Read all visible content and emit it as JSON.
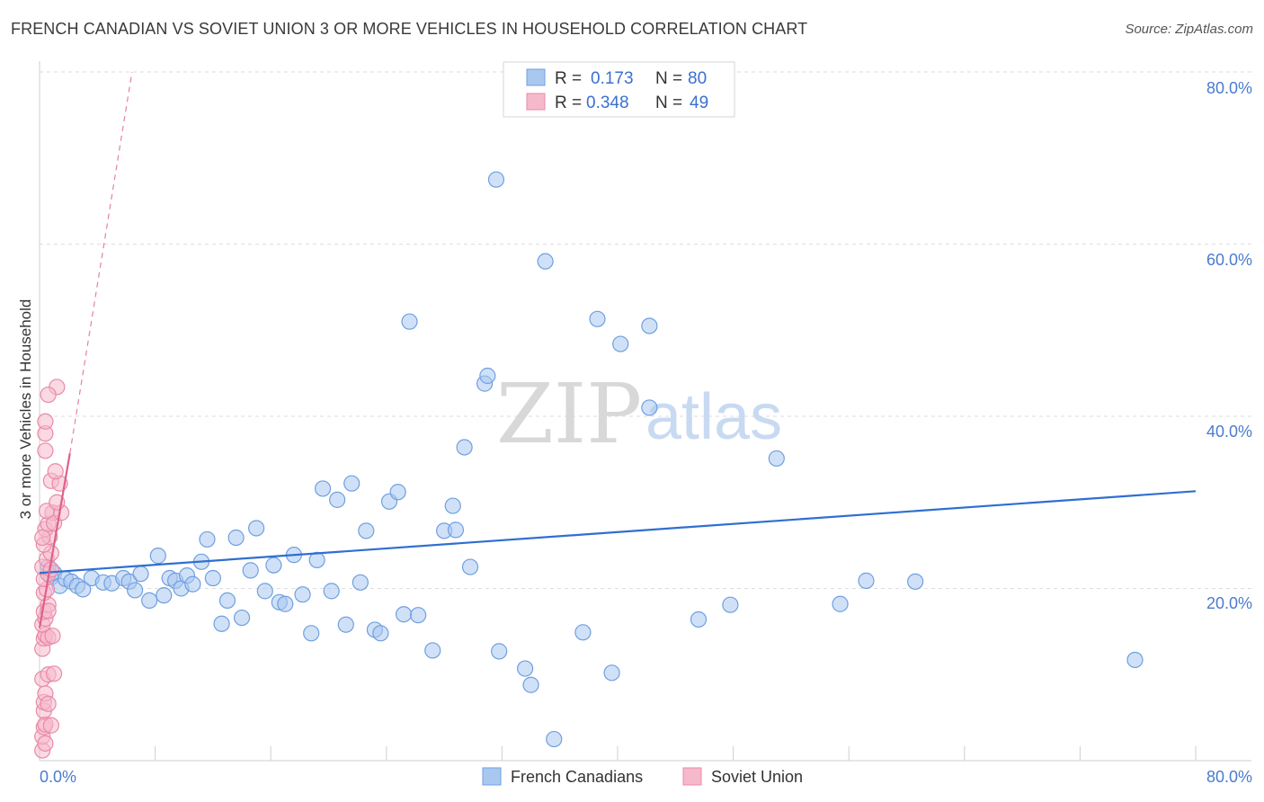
{
  "header": {
    "title": "FRENCH CANADIAN VS SOVIET UNION 3 OR MORE VEHICLES IN HOUSEHOLD CORRELATION CHART",
    "source": "Source: ZipAtlas.com"
  },
  "watermark": {
    "zip": "ZIP",
    "atlas": "atlas"
  },
  "legend": {
    "rows": [
      {
        "r_label": "R =",
        "r_value": "0.173",
        "n_label": "N =",
        "n_value": "80"
      },
      {
        "r_label": "R =",
        "r_value": "0.348",
        "n_label": "N =",
        "n_value": "49"
      }
    ]
  },
  "bottom_legend": {
    "french": "French Canadians",
    "soviet": "Soviet Union"
  },
  "axis_labels": {
    "y_title": "3 or more Vehicles in Household",
    "x_min": "0.0%",
    "x_max": "80.0%",
    "y_ticks": [
      "80.0%",
      "60.0%",
      "40.0%",
      "20.0%"
    ]
  },
  "chart_data": {
    "type": "scatter",
    "title": "FRENCH CANADIAN VS SOVIET UNION 3 OR MORE VEHICLES IN HOUSEHOLD CORRELATION CHART",
    "xlabel": "",
    "ylabel": "3 or more Vehicles in Household",
    "xlim": [
      0,
      80
    ],
    "ylim": [
      0,
      80
    ],
    "grid": true,
    "legend_position": "top-center",
    "colors": {
      "french": "#a9c8f0",
      "french_stroke": "#6f9fe0",
      "french_line": "#2f6fd0",
      "soviet": "#f6b9cc",
      "soviet_stroke": "#e98aa8",
      "soviet_line": "#e0608a",
      "axis_text": "#4a7bd0"
    },
    "series": [
      {
        "name": "French Canadians",
        "r": 0.173,
        "n": 80,
        "trend": {
          "x": [
            0,
            80
          ],
          "y": [
            21.8,
            31.3
          ]
        },
        "points": [
          [
            0.6,
            22.5
          ],
          [
            0.8,
            21.3
          ],
          [
            1.0,
            21.8
          ],
          [
            1.4,
            20.3
          ],
          [
            1.8,
            21.1
          ],
          [
            2.2,
            20.8
          ],
          [
            2.6,
            20.3
          ],
          [
            3.0,
            19.9
          ],
          [
            3.6,
            21.2
          ],
          [
            4.4,
            20.7
          ],
          [
            5.0,
            20.6
          ],
          [
            5.8,
            21.2
          ],
          [
            6.2,
            20.8
          ],
          [
            6.6,
            19.8
          ],
          [
            7.0,
            21.7
          ],
          [
            7.6,
            18.6
          ],
          [
            8.2,
            23.8
          ],
          [
            8.6,
            19.2
          ],
          [
            9.0,
            21.2
          ],
          [
            9.4,
            20.9
          ],
          [
            9.8,
            20.0
          ],
          [
            10.2,
            21.5
          ],
          [
            10.6,
            20.5
          ],
          [
            11.2,
            23.1
          ],
          [
            11.6,
            25.7
          ],
          [
            12.0,
            21.2
          ],
          [
            12.6,
            15.9
          ],
          [
            13.0,
            18.6
          ],
          [
            13.6,
            25.9
          ],
          [
            14.0,
            16.6
          ],
          [
            14.6,
            22.1
          ],
          [
            15.0,
            27.0
          ],
          [
            15.6,
            19.7
          ],
          [
            16.2,
            22.7
          ],
          [
            16.6,
            18.4
          ],
          [
            17.0,
            18.2
          ],
          [
            17.6,
            23.9
          ],
          [
            18.2,
            19.3
          ],
          [
            18.8,
            14.8
          ],
          [
            19.2,
            23.3
          ],
          [
            19.6,
            31.6
          ],
          [
            20.2,
            19.7
          ],
          [
            20.6,
            30.3
          ],
          [
            21.2,
            15.8
          ],
          [
            21.6,
            32.2
          ],
          [
            22.2,
            20.7
          ],
          [
            22.6,
            26.7
          ],
          [
            23.2,
            15.2
          ],
          [
            23.6,
            14.8
          ],
          [
            24.2,
            30.1
          ],
          [
            24.8,
            31.2
          ],
          [
            25.2,
            17.0
          ],
          [
            25.6,
            51.0
          ],
          [
            26.2,
            16.9
          ],
          [
            27.2,
            12.8
          ],
          [
            28.0,
            26.7
          ],
          [
            28.6,
            29.6
          ],
          [
            28.8,
            26.8
          ],
          [
            29.4,
            36.4
          ],
          [
            29.8,
            22.5
          ],
          [
            30.8,
            43.8
          ],
          [
            31.0,
            44.7
          ],
          [
            31.6,
            67.5
          ],
          [
            31.8,
            12.7
          ],
          [
            33.6,
            10.7
          ],
          [
            34.0,
            8.8
          ],
          [
            35.0,
            58.0
          ],
          [
            35.6,
            2.5
          ],
          [
            37.6,
            14.9
          ],
          [
            38.6,
            51.3
          ],
          [
            39.6,
            10.2
          ],
          [
            40.2,
            48.4
          ],
          [
            42.2,
            50.5
          ],
          [
            42.2,
            41.0
          ],
          [
            45.6,
            16.4
          ],
          [
            47.8,
            18.1
          ],
          [
            51.0,
            35.1
          ],
          [
            55.4,
            18.2
          ],
          [
            57.2,
            20.9
          ],
          [
            60.6,
            20.8
          ],
          [
            75.8,
            11.7
          ]
        ]
      },
      {
        "name": "Soviet Union",
        "r": 0.348,
        "n": 49,
        "trend": {
          "x": [
            0,
            2.1
          ],
          "y": [
            15.4,
            35.7
          ]
        },
        "trend_dashed": {
          "x": [
            2.1,
            6.4
          ],
          "y": [
            35.7,
            80
          ]
        },
        "points": [
          [
            0.2,
            1.2
          ],
          [
            0.2,
            2.8
          ],
          [
            0.3,
            3.9
          ],
          [
            0.4,
            4.2
          ],
          [
            0.3,
            5.8
          ],
          [
            0.3,
            6.8
          ],
          [
            0.4,
            7.8
          ],
          [
            0.2,
            9.5
          ],
          [
            0.6,
            10.0
          ],
          [
            0.2,
            13.0
          ],
          [
            0.3,
            14.2
          ],
          [
            0.4,
            14.6
          ],
          [
            0.6,
            14.3
          ],
          [
            0.2,
            15.8
          ],
          [
            0.4,
            16.5
          ],
          [
            0.3,
            17.3
          ],
          [
            0.6,
            18.1
          ],
          [
            0.3,
            19.5
          ],
          [
            0.5,
            19.9
          ],
          [
            0.3,
            21.1
          ],
          [
            0.6,
            21.7
          ],
          [
            0.2,
            22.5
          ],
          [
            0.5,
            23.4
          ],
          [
            0.8,
            24.1
          ],
          [
            0.3,
            25.1
          ],
          [
            0.7,
            26.0
          ],
          [
            0.4,
            26.9
          ],
          [
            0.6,
            27.5
          ],
          [
            0.9,
            28.8
          ],
          [
            1.0,
            27.6
          ],
          [
            0.5,
            29.0
          ],
          [
            0.8,
            32.5
          ],
          [
            1.4,
            32.2
          ],
          [
            1.1,
            33.6
          ],
          [
            1.5,
            28.8
          ],
          [
            0.4,
            38.0
          ],
          [
            0.4,
            39.4
          ],
          [
            1.2,
            43.4
          ],
          [
            0.6,
            42.5
          ],
          [
            1.0,
            10.1
          ],
          [
            0.6,
            6.6
          ],
          [
            0.8,
            4.1
          ],
          [
            0.4,
            2.0
          ],
          [
            0.6,
            17.4
          ],
          [
            0.8,
            22.2
          ],
          [
            0.2,
            25.9
          ],
          [
            1.2,
            30.0
          ],
          [
            0.9,
            14.5
          ],
          [
            0.4,
            36.0
          ]
        ]
      }
    ]
  }
}
